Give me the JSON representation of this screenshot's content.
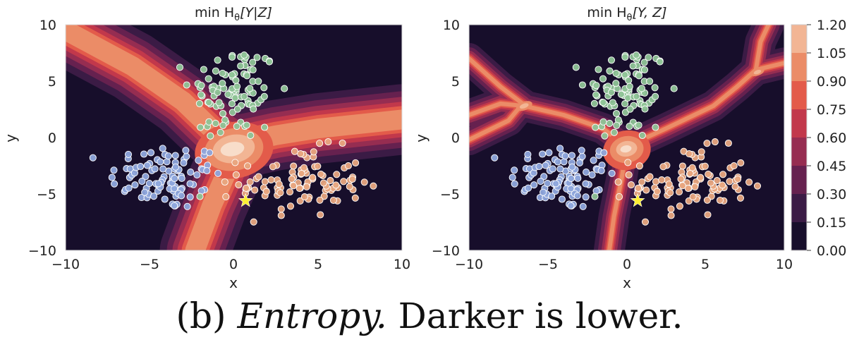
{
  "caption": {
    "label": "(b)",
    "emph": "Entropy.",
    "text": "Darker is lower."
  },
  "colors": {
    "background": "#170e2b",
    "class_blue": "#8ea6dc",
    "class_green": "#8fc497",
    "class_orange": "#e8a77f",
    "star": "#ffee33"
  },
  "chart_data": [
    {
      "type": "heatmap",
      "title": "min H_θ[Y|Z]",
      "title_parts": [
        "min H",
        "θ",
        "[Y|Z]"
      ],
      "xlabel": "x",
      "ylabel": "y",
      "xlim": [
        -10,
        10
      ],
      "ylim": [
        -10,
        10
      ],
      "xticks": [
        "−10",
        "−5",
        "0",
        "5",
        "10"
      ],
      "yticks": [
        "10",
        "5",
        "0",
        "−5",
        "−10"
      ],
      "class_means": [
        [
          -4,
          -3.5
        ],
        [
          0,
          4
        ],
        [
          4,
          -4
        ]
      ],
      "peak": [
        0,
        -1
      ],
      "query_point": [
        0.7,
        -5.6
      ],
      "star_color": "#ffee33"
    },
    {
      "type": "heatmap",
      "title": "min H_θ[Y, Z]",
      "title_parts": [
        "min H",
        "θ",
        "[Y, Z]"
      ],
      "xlabel": "x",
      "ylabel": "",
      "xlim": [
        -10,
        10
      ],
      "ylim": [
        -10,
        10
      ],
      "xticks": [
        "−10",
        "−5",
        "0",
        "5",
        "10"
      ],
      "yticks": [
        "10",
        "5",
        "0",
        "−5",
        "−10"
      ],
      "class_means": [
        [
          -4,
          -3.5
        ],
        [
          0,
          4
        ],
        [
          4,
          -4
        ]
      ],
      "peak": [
        0,
        -1
      ],
      "query_point": [
        0.7,
        -5.6
      ],
      "star_color": "#ffee33"
    }
  ],
  "colorbar": {
    "levels": [
      0.0,
      0.15,
      0.3,
      0.45,
      0.6,
      0.75,
      0.9,
      1.05,
      1.2
    ],
    "labels": [
      "1.20",
      "1.05",
      "0.90",
      "0.75",
      "0.60",
      "0.45",
      "0.30",
      "0.15",
      "0.00"
    ],
    "colors": [
      "#170e2b",
      "#3b1b45",
      "#66214f",
      "#962d51",
      "#c2384b",
      "#e35b4a",
      "#eb8c67",
      "#f2b594",
      "#f8ddca"
    ]
  }
}
